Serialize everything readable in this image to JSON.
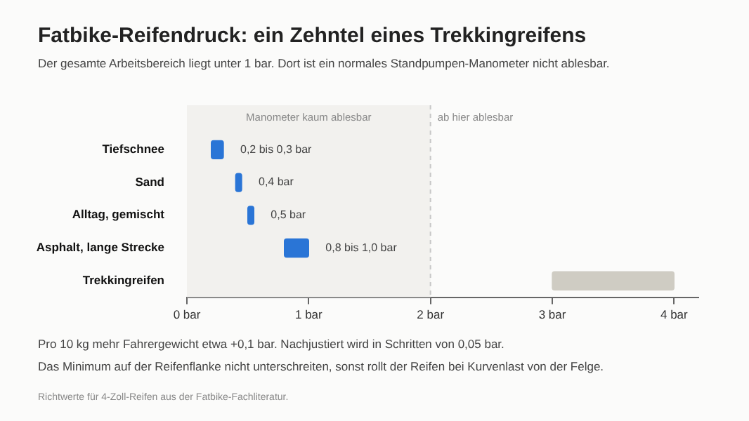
{
  "chart_data": {
    "type": "bar",
    "orientation": "horizontal",
    "title": "Fatbike-Reifendruck: ein Zehntel eines Trekkingreifens",
    "subtitle": "Der gesamte Arbeitsbereich liegt unter 1 bar. Dort ist ein normales Standpumpen-Manometer nicht ablesbar.",
    "categories": [
      "Tiefschnee",
      "Sand",
      "Alltag, gemischt",
      "Asphalt, lange Strecke",
      "Trekkingreifen"
    ],
    "base": [
      0.2,
      0.4,
      0.5,
      0.8,
      3.0
    ],
    "values": [
      0.1,
      0.05,
      0.05,
      0.2,
      1.0
    ],
    "colors": [
      "#2a75d6",
      "#2a75d6",
      "#2a75d6",
      "#2a75d6",
      "#cfccc3"
    ],
    "xlim": [
      0,
      4.2
    ],
    "xticks": [
      {
        "value": 0,
        "label": "0 bar"
      },
      {
        "value": 1,
        "label": "1 bar"
      },
      {
        "value": 2,
        "label": "2 bar"
      },
      {
        "value": 3,
        "label": "3 bar"
      },
      {
        "value": 4,
        "label": "4 bar"
      }
    ],
    "bands": [
      {
        "axis": "x",
        "from": 0,
        "to": 2,
        "label": "Manometer kaum ablesbar",
        "color": "#f2f1ee"
      }
    ],
    "ref_lines": [
      {
        "axis": "x",
        "value": 2,
        "label": "ab hier ablesbar",
        "color": "#c8c8c8",
        "line_style": "dashed"
      }
    ],
    "annotations": [
      {
        "text": "0,2 bis 0,3 bar",
        "x": 0.3,
        "y": "Tiefschnee"
      },
      {
        "text": "0,4 bar",
        "x": 0.45,
        "y": "Sand"
      },
      {
        "text": "0,5 bar",
        "x": 0.55,
        "y": "Alltag, gemischt"
      },
      {
        "text": "0,8 bis 1,0 bar",
        "x": 1.0,
        "y": "Asphalt, lange Strecke"
      },
      "Pro 10 kg mehr Fahrergewicht etwa +0,1 bar. Nachjustiert wird in Schritten von 0,05 bar.",
      "Das Minimum auf der Reifenflanke nicht unterschreiten, sonst rollt der Reifen bei Kurvenlast von der Felge.",
      "Richtwerte für 4-Zoll-Reifen aus der Fatbike-Fachliteratur."
    ]
  }
}
